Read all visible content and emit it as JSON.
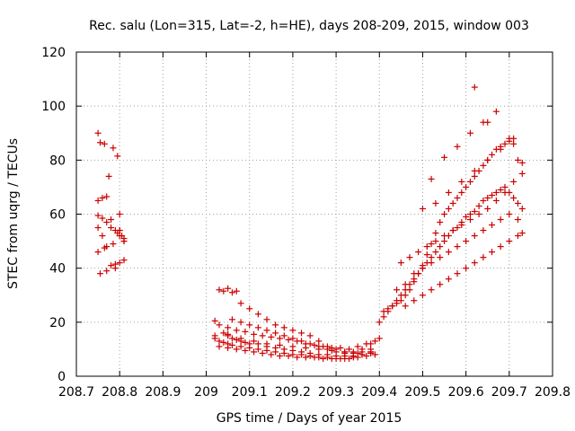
{
  "chart_data": {
    "type": "scatter",
    "title": "Rec. salu (Lon=315, Lat=-2, h=HE), days 208-209, 2015, window 003",
    "xlabel": "GPS time / Days of year 2015",
    "ylabel": "STEC from uqrg / TECUs",
    "xlim": [
      208.7,
      209.8
    ],
    "ylim": [
      0,
      120
    ],
    "xticks": [
      "208.7",
      "208.8",
      "208.9",
      "209",
      "209.1",
      "209.2",
      "209.3",
      "209.4",
      "209.5",
      "209.6",
      "209.7",
      "209.8"
    ],
    "yticks": [
      "0",
      "20",
      "40",
      "60",
      "80",
      "100",
      "120"
    ],
    "grid": true,
    "legend": "none",
    "marker": "plus",
    "color": "#cc0000",
    "series": [
      {
        "x": [
          208.75,
          208.755,
          208.765,
          208.775,
          208.785,
          208.795,
          208.8,
          208.75,
          208.76,
          208.77,
          208.78,
          208.795,
          208.805,
          208.75,
          208.76,
          208.77,
          208.78,
          208.79,
          208.8,
          208.81,
          208.75,
          208.76,
          208.77,
          208.785,
          208.8,
          208.81,
          208.75,
          208.765,
          208.78,
          208.79,
          208.8,
          208.81,
          208.755,
          208.77,
          208.79,
          208.8,
          208.81
        ],
        "y": [
          90,
          86.5,
          86,
          74,
          84.5,
          81.5,
          60,
          65,
          66,
          66.5,
          58,
          53,
          52,
          59.5,
          58.5,
          57,
          55,
          54,
          54,
          50,
          55,
          52,
          48,
          49,
          52,
          51,
          46,
          47.5,
          41,
          41.5,
          42,
          43,
          38,
          39,
          40,
          54,
          50
        ]
      },
      {
        "x": [
          209.02,
          209.03,
          209.04,
          209.05,
          209.06,
          209.07,
          209.08,
          209.09,
          209.1,
          209.12,
          209.14,
          209.16,
          209.18,
          209.2,
          209.22,
          209.24,
          209.26,
          209.28,
          209.3,
          209.32,
          209.34,
          209.36,
          209.38,
          209.02,
          209.03,
          209.04,
          209.05,
          209.06,
          209.08,
          209.1,
          209.12,
          209.14,
          209.16,
          209.18,
          209.2,
          209.22,
          209.24,
          209.26,
          209.28,
          209.3,
          209.32,
          209.34,
          209.36,
          209.38,
          209.03,
          209.05,
          209.07,
          209.09,
          209.11,
          209.13,
          209.15,
          209.17,
          209.19,
          209.21,
          209.23,
          209.25,
          209.27,
          209.29,
          209.31,
          209.33,
          209.35,
          209.37,
          209.39,
          209.03,
          209.04,
          209.05,
          209.06,
          209.07,
          209.08,
          209.1,
          209.12,
          209.14,
          209.16,
          209.18,
          209.2,
          209.22,
          209.24,
          209.26,
          209.28,
          209.3,
          209.32,
          209.34,
          209.36,
          209.38,
          209.05,
          209.07,
          209.09,
          209.11,
          209.13,
          209.15,
          209.17,
          209.19,
          209.21,
          209.23,
          209.25,
          209.27,
          209.29,
          209.31,
          209.33,
          209.35,
          209.37,
          209.39,
          209.06,
          209.08,
          209.1,
          209.12,
          209.14,
          209.16,
          209.18,
          209.2,
          209.22,
          209.24,
          209.26,
          209.28,
          209.3,
          209.32,
          209.34,
          209.36,
          209.38,
          209.4,
          209.02,
          209.05,
          209.08,
          209.11,
          209.14,
          209.17,
          209.2,
          209.23,
          209.26,
          209.29,
          209.32,
          209.35,
          209.38
        ],
        "y": [
          20.5,
          19,
          16,
          15,
          14,
          13.5,
          13,
          12.5,
          12,
          12,
          11,
          10.5,
          10,
          9.5,
          9,
          8.5,
          8,
          8,
          7.5,
          7.5,
          7.5,
          8,
          9,
          14,
          13,
          12.5,
          12,
          11.5,
          11,
          10.5,
          10,
          9.5,
          9,
          8.5,
          8,
          8,
          7.5,
          7,
          7,
          6.5,
          6.5,
          7,
          8,
          9,
          11,
          10.5,
          10,
          9.5,
          9,
          8.5,
          8,
          7.5,
          7.5,
          7,
          7,
          7,
          6.5,
          6.5,
          6.5,
          6.5,
          7,
          7.5,
          8,
          32,
          31.5,
          32.5,
          31,
          31.5,
          27,
          25,
          23,
          21,
          19,
          18,
          17,
          16,
          15,
          13,
          11,
          10,
          9,
          8.5,
          9,
          10,
          18,
          17,
          16.5,
          15.5,
          15,
          14.5,
          14,
          13.5,
          13,
          12,
          11.5,
          11,
          10.5,
          10.5,
          10,
          11,
          12,
          13,
          21,
          20,
          19,
          18,
          17,
          16,
          15,
          14,
          13,
          12,
          11,
          10,
          9,
          8.5,
          9,
          10,
          12,
          14,
          15,
          15.5,
          14,
          13,
          12,
          11.5,
          11,
          10.5,
          10,
          9.5,
          9,
          8.5,
          8.5
        ]
      },
      {
        "x": [
          209.4,
          209.41,
          209.42,
          209.43,
          209.44,
          209.45,
          209.46,
          209.47,
          209.48,
          209.49,
          209.5,
          209.51,
          209.52,
          209.53,
          209.54,
          209.55,
          209.56,
          209.57,
          209.58,
          209.59,
          209.6,
          209.61,
          209.62,
          209.63,
          209.64,
          209.65,
          209.66,
          209.67,
          209.68,
          209.69,
          209.7,
          209.71,
          209.72,
          209.73,
          209.41,
          209.42,
          209.43,
          209.44,
          209.45,
          209.46,
          209.47,
          209.48,
          209.49,
          209.5,
          209.51,
          209.52,
          209.53,
          209.54,
          209.55,
          209.56,
          209.57,
          209.58,
          209.59,
          209.6,
          209.61,
          209.62,
          209.63,
          209.64,
          209.65,
          209.66,
          209.67,
          209.68,
          209.69,
          209.7,
          209.71,
          209.72,
          209.73,
          209.45,
          209.47,
          209.49,
          209.51,
          209.53,
          209.55,
          209.57,
          209.59,
          209.61,
          209.63,
          209.65,
          209.67,
          209.69,
          209.71,
          209.73,
          209.44,
          209.46,
          209.48,
          209.5,
          209.52,
          209.54,
          209.56,
          209.58,
          209.6,
          209.62,
          209.64,
          209.66,
          209.68,
          209.7,
          209.72,
          209.46,
          209.48,
          209.5,
          209.52,
          209.54,
          209.56,
          209.58,
          209.6,
          209.62,
          209.64,
          209.66,
          209.68,
          209.7,
          209.72,
          209.5,
          209.53,
          209.56,
          209.59,
          209.62,
          209.65,
          209.68,
          209.71,
          209.52,
          209.55,
          209.58,
          209.61,
          209.64,
          209.67,
          209.7,
          209.73,
          209.62,
          209.65
        ],
        "y": [
          20,
          22,
          24,
          26,
          28,
          30,
          32,
          34,
          36,
          38,
          40,
          42,
          44,
          46,
          48,
          50,
          52,
          54,
          55,
          57,
          59,
          60,
          61,
          63,
          65,
          66,
          67,
          68,
          69,
          70,
          68,
          66,
          64,
          62,
          24,
          25,
          26,
          27,
          28,
          30,
          32,
          35,
          38,
          41,
          45,
          49,
          53,
          57,
          60,
          62,
          64,
          66,
          68,
          70,
          72,
          74,
          76,
          78,
          80,
          82,
          84,
          85,
          86,
          87,
          86,
          80,
          79,
          42,
          44,
          46,
          48,
          50,
          52,
          54,
          56,
          58,
          60,
          62,
          65,
          68,
          72,
          75,
          32,
          34,
          38,
          40,
          42,
          44,
          46,
          48,
          50,
          52,
          54,
          56,
          58,
          60,
          58,
          26,
          28,
          30,
          32,
          34,
          36,
          38,
          40,
          42,
          44,
          46,
          48,
          50,
          52,
          62,
          64,
          68,
          72,
          76,
          80,
          84,
          88,
          73,
          81,
          85,
          90,
          94,
          98,
          88,
          53,
          107,
          94
        ]
      }
    ]
  }
}
